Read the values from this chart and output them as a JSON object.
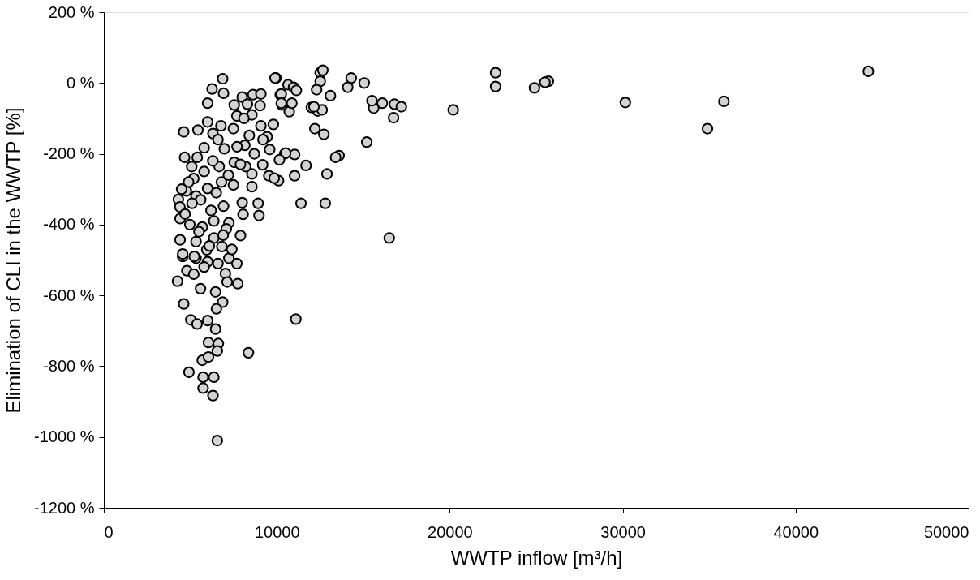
{
  "chart_data": {
    "type": "scatter",
    "xlabel": "WWTP inflow [m³/h]",
    "ylabel": "Elimination of CLI in the WWTP [%]",
    "xlim": [
      0,
      50000
    ],
    "xticks": [
      0,
      10000,
      20000,
      30000,
      40000,
      50000
    ],
    "ylim": [
      -1200,
      200
    ],
    "yticks": [
      {
        "value": 200,
        "label": "200 %"
      },
      {
        "value": 0,
        "label": "0 %"
      },
      {
        "value": -200,
        "label": "-200 %"
      },
      {
        "value": -400,
        "label": "-400 %"
      },
      {
        "value": -600,
        "label": "-600 %"
      },
      {
        "value": -800,
        "label": "-800 %"
      },
      {
        "value": -1000,
        "label": "-1000 %"
      },
      {
        "value": -1200,
        "label": "-1200 %"
      }
    ],
    "grid": false,
    "series": [
      {
        "color": "#d3d3d3",
        "x": [
          44200,
          35850,
          34900,
          30150,
          25700,
          25500,
          24900,
          22650,
          22650,
          20200,
          16800,
          16750,
          17200,
          16100,
          15600,
          15500,
          15200,
          15050,
          14300,
          14100,
          13600,
          13400,
          13100,
          12900,
          12800,
          11400,
          11100,
          16500,
          8360,
          9950,
          10650,
          10970,
          11130,
          12510,
          12510,
          12300,
          12360,
          12620,
          12720,
          12200,
          12000,
          11690,
          11030,
          11030,
          10460,
          10720,
          10200,
          10300,
          10100,
          9540,
          9850,
          12660,
          4620,
          5030,
          5390,
          6000,
          6460,
          6050,
          6620,
          6560,
          5690,
          6050,
          4920,
          5740,
          6360,
          5740,
          6310,
          6560,
          4260,
          4560,
          5590,
          6460,
          6870,
          6510,
          7740,
          7690,
          7030,
          6000,
          5330,
          7130,
          6870,
          9900,
          6260,
          6920,
          6000,
          7540,
          8000,
          8620,
          9080,
          9030,
          10260,
          10260,
          10870,
          12150,
          4620,
          5440,
          6770,
          7690,
          8560,
          9080,
          9800,
          6310,
          7490,
          5800,
          6970,
          8150,
          8410,
          9440,
          9590,
          10510,
          10150,
          9180,
          8560,
          8200,
          4670,
          5080,
          6670,
          7540,
          7490,
          8560,
          8920,
          8970,
          8050,
          8000,
          4770,
          4310,
          4410,
          5330,
          6000,
          6920,
          6360,
          7230,
          7900,
          7080,
          5690,
          4970,
          4410,
          5330,
          6360,
          6820,
          5950,
          4560,
          7230,
          5230,
          5200,
          5800,
          6300,
          6800,
          5600,
          6500,
          7200,
          7700,
          8100,
          8700,
          9200,
          8300,
          7900,
          6600,
          6000,
          5400,
          4900,
          4500,
          4400,
          4700,
          5100,
          6200,
          5500,
          6100,
          6900,
          4800,
          5200,
          5800,
          6600,
          7400
        ],
        "values": [
          33,
          -52,
          -129,
          -55,
          5,
          2,
          -14,
          29,
          -10,
          -76,
          -60,
          -98,
          -67,
          -57,
          -71,
          -50,
          -167,
          0,
          14,
          -12,
          -205,
          -210,
          -36,
          -257,
          -340,
          -340,
          -667,
          -438,
          -762,
          14,
          -5,
          -12,
          -21,
          29,
          5,
          -19,
          -79,
          -76,
          -145,
          -129,
          -69,
          -233,
          -202,
          -262,
          -200,
          -81,
          -33,
          -62,
          -276,
          -262,
          -269,
          36,
          -624,
          -669,
          -681,
          -671,
          -695,
          -733,
          -736,
          -757,
          -783,
          -774,
          -817,
          -831,
          -831,
          -862,
          -883,
          -1010,
          -560,
          -490,
          -581,
          -590,
          -619,
          -638,
          -567,
          -510,
          -538,
          -505,
          -495,
          -562,
          12,
          14,
          -17,
          -29,
          -57,
          -62,
          -40,
          -33,
          -31,
          -64,
          -31,
          -57,
          -57,
          -67,
          -138,
          -133,
          -121,
          -93,
          -90,
          -121,
          -117,
          -143,
          -129,
          -183,
          -186,
          -176,
          -148,
          -152,
          -188,
          -198,
          -217,
          -231,
          -257,
          -236,
          -210,
          -236,
          -236,
          -224,
          -288,
          -293,
          -340,
          -374,
          -371,
          -338,
          -305,
          -329,
          -383,
          -319,
          -298,
          -348,
          -390,
          -395,
          -431,
          -412,
          -407,
          -400,
          -443,
          -448,
          -438,
          -462,
          -471,
          -483,
          -495,
          -490,
          -270,
          -250,
          -220,
          -280,
          -330,
          -310,
          -260,
          -180,
          -100,
          -200,
          -160,
          -60,
          -230,
          -160,
          -110,
          -210,
          -280,
          -300,
          -350,
          -370,
          -340,
          -360,
          -420,
          -460,
          -430,
          -530,
          -540,
          -520,
          -510,
          -470
        ]
      }
    ]
  }
}
